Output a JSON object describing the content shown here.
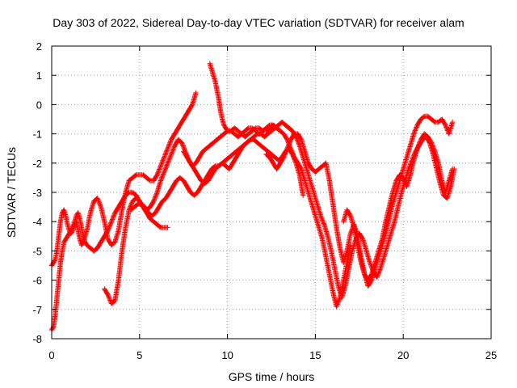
{
  "chart_data": {
    "type": "scatter",
    "title": "Day 303 of 2022, Sidereal Day-to-day VTEC variation (SDTVAR) for receiver alam",
    "xlabel": "GPS time / hours",
    "ylabel": "SDTVAR / TECUs",
    "xlim": [
      0,
      25
    ],
    "ylim": [
      -8,
      2
    ],
    "xticks": [
      0,
      5,
      10,
      15,
      20,
      25
    ],
    "yticks": [
      -8,
      -7,
      -6,
      -5,
      -4,
      -3,
      -2,
      -1,
      0,
      1,
      2
    ],
    "grid": true,
    "legend": "none",
    "marker": "+",
    "color": "#ff0000",
    "series": [
      {
        "x": [
          0.0,
          0.1,
          0.2,
          0.3,
          0.4,
          0.5,
          0.6,
          0.7,
          0.8,
          0.9,
          1.0,
          1.1,
          1.2,
          1.3,
          1.4,
          1.5,
          1.6,
          1.7,
          1.8,
          1.9,
          2.0,
          2.2,
          2.4,
          2.6,
          2.8,
          3.0,
          3.2,
          3.4,
          3.6,
          3.8,
          4.0,
          4.2,
          4.4,
          4.6,
          4.8,
          5.0,
          5.2,
          5.4,
          5.6,
          5.8,
          6.0,
          6.2,
          6.4,
          6.6
        ],
        "y": [
          -7.7,
          -7.6,
          -7.2,
          -6.6,
          -6.0,
          -5.4,
          -5.0,
          -4.7,
          -4.6,
          -4.5,
          -4.4,
          -4.3,
          -4.2,
          -4.0,
          -3.8,
          -3.7,
          -3.9,
          -4.2,
          -4.5,
          -4.7,
          -4.8,
          -4.9,
          -5.0,
          -4.9,
          -4.7,
          -4.5,
          -4.3,
          -4.0,
          -3.7,
          -3.5,
          -3.3,
          -3.1,
          -3.0,
          -3.0,
          -3.1,
          -3.3,
          -3.5,
          -3.7,
          -3.9,
          -4.0,
          -4.1,
          -4.2,
          -4.2,
          -4.2
        ]
      },
      {
        "x": [
          0.0,
          0.1,
          0.2,
          0.3,
          0.4,
          0.5,
          0.6,
          0.7,
          0.8,
          0.9,
          1.0,
          1.1,
          1.2,
          1.3,
          1.4,
          1.5,
          1.6,
          1.7,
          1.8,
          2.0,
          2.2,
          2.4,
          2.6,
          2.8,
          3.0,
          3.2,
          3.4,
          3.6,
          3.8,
          4.0,
          4.2,
          4.4,
          4.6,
          4.8,
          5.0,
          5.2,
          5.4,
          5.6,
          5.8,
          6.0,
          6.2,
          6.4,
          6.6,
          6.8,
          7.0,
          7.2,
          7.4,
          7.6,
          7.8,
          8.0,
          8.2
        ],
        "y": [
          -5.5,
          -5.4,
          -5.3,
          -5.0,
          -4.5,
          -4.0,
          -3.7,
          -3.6,
          -3.8,
          -4.1,
          -4.3,
          -4.4,
          -4.3,
          -4.1,
          -4.0,
          -4.3,
          -4.6,
          -4.8,
          -4.7,
          -4.3,
          -3.7,
          -3.3,
          -3.2,
          -3.5,
          -4.0,
          -4.6,
          -4.8,
          -4.7,
          -4.3,
          -3.6,
          -3.0,
          -2.6,
          -2.5,
          -2.4,
          -2.4,
          -2.4,
          -2.5,
          -2.6,
          -2.6,
          -2.4,
          -2.1,
          -1.8,
          -1.5,
          -1.2,
          -1.0,
          -0.8,
          -0.6,
          -0.4,
          -0.2,
          0.0,
          0.4
        ]
      },
      {
        "x": [
          3.0,
          3.2,
          3.4,
          3.6,
          3.8,
          4.0,
          4.2,
          4.4,
          4.6,
          4.8,
          5.0,
          5.2,
          5.4,
          5.6,
          5.8,
          6.0,
          6.2,
          6.4,
          6.6,
          6.8,
          7.0,
          7.2,
          7.4,
          7.6,
          7.8,
          8.0,
          8.2,
          8.4,
          8.6,
          8.8,
          9.0,
          9.2,
          9.4,
          9.6,
          9.8,
          10.0,
          10.2,
          10.4,
          10.6,
          10.8,
          11.0,
          11.2,
          11.4,
          11.6,
          11.8,
          12.0,
          12.2,
          12.4,
          12.6,
          12.8,
          13.0
        ],
        "y": [
          -6.3,
          -6.5,
          -6.8,
          -6.7,
          -6.0,
          -5.0,
          -4.2,
          -3.6,
          -3.3,
          -3.2,
          -3.3,
          -3.5,
          -3.6,
          -3.5,
          -3.3,
          -3.0,
          -2.6,
          -2.3,
          -2.0,
          -1.7,
          -1.4,
          -1.2,
          -1.3,
          -1.6,
          -1.9,
          -2.1,
          -2.0,
          -1.8,
          -1.6,
          -1.5,
          -1.4,
          -1.3,
          -1.2,
          -1.1,
          -1.0,
          -0.9,
          -0.9,
          -1.0,
          -1.1,
          -1.0,
          -0.9,
          -0.8,
          -0.8,
          -0.9,
          -1.0,
          -0.9,
          -0.8,
          -0.7,
          -0.7,
          -0.8,
          -0.9
        ]
      },
      {
        "x": [
          4.5,
          4.7,
          4.9,
          5.1,
          5.3,
          5.5,
          5.7,
          5.9,
          6.1,
          6.3,
          6.5,
          6.7,
          6.9,
          7.1,
          7.3,
          7.5,
          7.7,
          7.9,
          8.1,
          8.3,
          8.5,
          8.7,
          8.9,
          9.1,
          9.3,
          9.5,
          9.7,
          9.9,
          10.1,
          10.3,
          10.5,
          10.7,
          10.9,
          11.1,
          11.3,
          11.5,
          11.7,
          11.9,
          12.1,
          12.3,
          12.5,
          12.7,
          12.9,
          13.1,
          13.3,
          13.5,
          13.7,
          13.9,
          14.1,
          14.3
        ],
        "y": [
          -3.6,
          -3.5,
          -3.4,
          -3.4,
          -3.5,
          -3.7,
          -3.8,
          -3.7,
          -3.5,
          -3.3,
          -3.2,
          -3.0,
          -2.8,
          -2.6,
          -2.5,
          -2.6,
          -2.8,
          -3.0,
          -3.1,
          -3.0,
          -2.8,
          -2.6,
          -2.4,
          -2.2,
          -2.1,
          -2.1,
          -2.0,
          -1.9,
          -1.8,
          -1.7,
          -1.6,
          -1.5,
          -1.4,
          -1.3,
          -1.2,
          -1.2,
          -1.3,
          -1.4,
          -1.5,
          -1.6,
          -1.7,
          -1.8,
          -1.9,
          -1.8,
          -1.6,
          -1.5,
          -1.7,
          -2.0,
          -2.4,
          -3.1
        ]
      },
      {
        "x": [
          7.5,
          7.7,
          7.9,
          8.1,
          8.3,
          8.5,
          8.7,
          8.9,
          9.1,
          9.3,
          9.5,
          9.7,
          9.9,
          10.1,
          10.3,
          10.5,
          10.7,
          10.9,
          11.1,
          11.3,
          11.5,
          11.7,
          11.9,
          12.1,
          12.3,
          12.5,
          12.7,
          12.9,
          13.1,
          13.3,
          13.5
        ],
        "y": [
          -1.6,
          -1.8,
          -2.0,
          -2.2,
          -2.4,
          -2.6,
          -2.7,
          -2.6,
          -2.4,
          -2.2,
          -2.1,
          -2.0,
          -2.1,
          -2.2,
          -2.0,
          -1.8,
          -1.6,
          -1.4,
          -1.3,
          -1.2,
          -1.1,
          -1.0,
          -1.0,
          -1.1,
          -1.0,
          -0.9,
          -0.8,
          -0.7,
          -0.6,
          -0.7,
          -0.8
        ]
      },
      {
        "x": [
          9.0,
          9.1,
          9.2,
          9.3,
          9.4,
          9.5,
          9.6,
          9.7,
          9.8,
          9.9,
          10.0,
          10.2,
          10.4,
          10.6,
          10.8,
          11.0,
          11.2,
          11.4,
          11.6,
          11.8,
          12.0,
          12.2,
          12.4,
          12.6,
          12.8,
          13.0,
          13.2,
          13.4,
          13.6,
          13.8,
          14.0,
          14.2,
          14.4,
          14.6,
          14.8,
          15.0,
          15.2,
          15.4,
          15.6,
          15.8,
          16.0,
          16.2,
          16.4,
          16.6,
          16.8,
          17.0
        ],
        "y": [
          1.4,
          1.2,
          1.0,
          0.8,
          0.5,
          0.2,
          -0.2,
          -0.5,
          -0.7,
          -0.8,
          -0.9,
          -0.9,
          -0.8,
          -0.9,
          -1.0,
          -1.1,
          -1.0,
          -0.9,
          -0.8,
          -0.8,
          -0.9,
          -0.9,
          -0.8,
          -0.7,
          -0.8,
          -0.9,
          -1.0,
          -1.2,
          -1.5,
          -1.8,
          -2.0,
          -2.2,
          -2.6,
          -3.0,
          -3.4,
          -3.8,
          -4.2,
          -4.6,
          -5.2,
          -5.8,
          -6.4,
          -6.9,
          -6.6,
          -6.0,
          -5.4,
          -4.8
        ]
      },
      {
        "x": [
          12.2,
          12.4,
          12.6,
          12.8,
          13.0,
          13.2,
          13.4,
          13.6,
          13.8,
          14.0,
          14.2,
          14.4,
          14.6,
          14.8,
          15.0,
          15.2,
          15.4,
          15.6,
          15.8,
          16.0,
          16.2,
          16.4,
          16.6,
          16.8,
          17.0,
          17.2,
          17.4,
          17.6,
          17.8,
          18.0,
          18.2,
          18.4,
          18.6,
          18.8,
          19.0,
          19.2,
          19.4,
          19.6,
          19.8,
          20.0,
          20.2,
          20.4,
          20.6,
          20.8,
          21.0,
          21.2,
          21.4,
          21.6,
          21.8,
          22.0,
          22.2,
          22.4,
          22.6,
          22.8
        ],
        "y": [
          -1.7,
          -1.8,
          -2.0,
          -2.2,
          -2.0,
          -1.8,
          -1.5,
          -1.2,
          -1.0,
          -1.0,
          -1.2,
          -1.6,
          -2.0,
          -2.2,
          -2.3,
          -2.2,
          -2.1,
          -2.0,
          -2.6,
          -3.4,
          -4.2,
          -4.9,
          -5.4,
          -5.0,
          -4.4,
          -4.1,
          -4.5,
          -5.2,
          -5.8,
          -6.2,
          -6.0,
          -5.6,
          -5.2,
          -4.8,
          -4.4,
          -3.9,
          -3.4,
          -3.0,
          -2.6,
          -2.2,
          -1.8,
          -1.4,
          -1.0,
          -0.7,
          -0.5,
          -0.4,
          -0.4,
          -0.5,
          -0.6,
          -0.6,
          -0.5,
          -0.7,
          -1.0,
          -0.6
        ]
      },
      {
        "x": [
          13.5,
          13.7,
          13.9,
          14.1,
          14.3,
          14.5,
          14.7,
          14.9,
          15.1,
          15.3,
          15.5,
          15.7,
          15.9,
          16.1,
          16.3,
          16.5,
          16.7,
          16.9,
          17.1,
          17.3,
          17.5,
          17.7,
          17.9,
          18.1,
          18.3,
          18.5,
          18.7,
          18.9,
          19.1,
          19.3,
          19.5,
          19.7,
          19.9,
          20.1,
          20.3,
          20.5,
          20.7,
          20.9,
          21.1,
          21.3,
          21.5,
          21.7,
          21.9,
          22.1,
          22.3,
          22.5,
          22.7,
          22.9
        ],
        "y": [
          -0.8,
          -0.9,
          -1.1,
          -1.4,
          -1.8,
          -2.2,
          -2.6,
          -3.0,
          -3.4,
          -3.8,
          -4.1,
          -4.5,
          -5.0,
          -5.6,
          -6.2,
          -6.6,
          -6.2,
          -5.6,
          -5.0,
          -4.6,
          -4.4,
          -4.6,
          -5.0,
          -5.4,
          -5.7,
          -5.9,
          -5.6,
          -5.2,
          -4.8,
          -4.4,
          -4.0,
          -3.5,
          -3.0,
          -2.6,
          -2.2,
          -1.9,
          -1.6,
          -1.4,
          -1.2,
          -1.1,
          -1.3,
          -1.7,
          -2.2,
          -2.7,
          -3.1,
          -3.2,
          -2.8,
          -2.2
        ]
      },
      {
        "x": [
          16.6,
          16.8,
          17.0,
          17.2,
          17.4,
          17.6,
          17.8,
          18.0,
          18.2,
          18.4,
          18.6,
          18.8,
          19.0,
          19.2,
          19.4,
          19.6,
          19.8,
          20.0,
          20.2,
          20.4,
          20.6,
          20.8,
          21.0,
          21.2,
          21.4,
          21.6,
          21.8,
          22.0,
          22.2,
          22.4,
          22.6,
          22.8
        ],
        "y": [
          -4.0,
          -3.6,
          -3.8,
          -4.2,
          -4.8,
          -5.4,
          -5.8,
          -6.0,
          -5.8,
          -5.4,
          -5.0,
          -4.6,
          -4.0,
          -3.5,
          -3.0,
          -2.6,
          -2.4,
          -2.5,
          -2.8,
          -2.4,
          -1.9,
          -1.5,
          -1.2,
          -1.0,
          -1.1,
          -1.3,
          -1.6,
          -2.0,
          -2.6,
          -3.0,
          -2.6,
          -2.2
        ]
      }
    ]
  }
}
